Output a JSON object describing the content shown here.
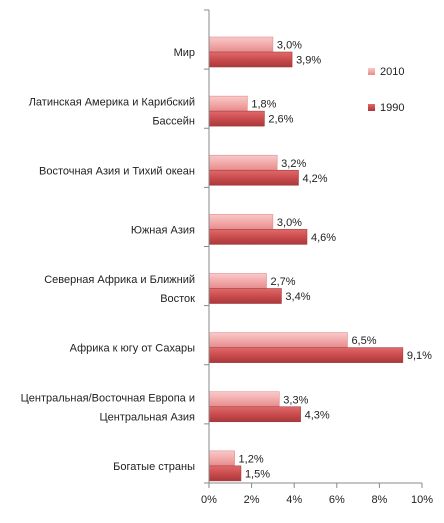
{
  "chart_data": {
    "type": "bar",
    "orientation": "horizontal",
    "categories": [
      "Мир",
      "Латинская Америка и Карибский Бассейн",
      "Восточная Азия и Тихий океан",
      "Южная Азия",
      "Северная Африка и Ближний Восток",
      "Африка к югу от Сахары",
      "Центральная/Восточная Европа и Центральная Азия",
      "Богатые страны"
    ],
    "category_label_lines": [
      [
        "Мир"
      ],
      [
        "Латинская Америка и Карибский",
        "Бассейн"
      ],
      [
        "Восточная Азия и Тихий океан"
      ],
      [
        "Южная Азия"
      ],
      [
        "Северная Африка и Ближний",
        "Восток"
      ],
      [
        "Африка к югу от Сахары"
      ],
      [
        "Центральная/Восточная Европа и",
        "Центральная Азия"
      ],
      [
        "Богатые страны"
      ]
    ],
    "series": [
      {
        "name": "2010",
        "color": "#F2A7A7",
        "values": [
          3.0,
          1.8,
          3.2,
          3.0,
          2.7,
          6.5,
          3.3,
          1.2
        ],
        "labels": [
          "3,0%",
          "1,8%",
          "3,2%",
          "3,0%",
          "2,7%",
          "6,5%",
          "3,3%",
          "1,2%"
        ]
      },
      {
        "name": "1990",
        "color": "#C8494B",
        "values": [
          3.9,
          2.6,
          4.2,
          4.6,
          3.4,
          9.1,
          4.3,
          1.5
        ],
        "labels": [
          "3,9%",
          "2,6%",
          "4,2%",
          "4,6%",
          "3,4%",
          "9,1%",
          "4,3%",
          "1,5%"
        ]
      }
    ],
    "xlim": [
      0,
      10
    ],
    "x_ticks": [
      0,
      2,
      4,
      6,
      8,
      10
    ],
    "x_tick_labels": [
      "0%",
      "2%",
      "4%",
      "6%",
      "8%",
      "10%"
    ],
    "grid": false,
    "legend_position": "right"
  }
}
